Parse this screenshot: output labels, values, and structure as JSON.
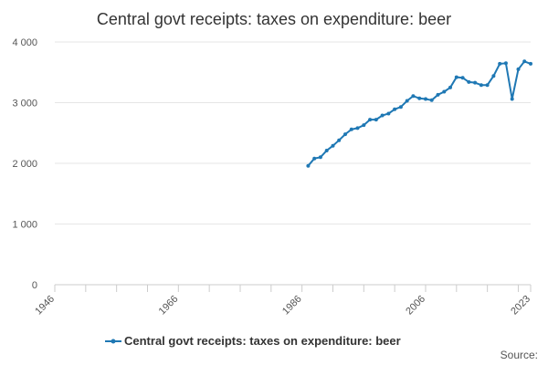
{
  "chart_data": {
    "type": "line",
    "title": "Central govt receipts: taxes on expenditure: beer",
    "xlabel": "",
    "ylabel": "",
    "xlim": [
      1946,
      2023
    ],
    "ylim": [
      0,
      4000
    ],
    "x_ticks": [
      "1946",
      "1966",
      "1986",
      "2006",
      "2023"
    ],
    "y_ticks": [
      "0",
      "1 000",
      "2 000",
      "3 000",
      "4 000"
    ],
    "grid": true,
    "legend_position": "bottom",
    "series": [
      {
        "name": "Central govt receipts: taxes on expenditure: beer",
        "color": "#1f78b4",
        "x": [
          1987,
          1988,
          1989,
          1990,
          1991,
          1992,
          1993,
          1994,
          1995,
          1996,
          1997,
          1998,
          1999,
          2000,
          2001,
          2002,
          2003,
          2004,
          2005,
          2006,
          2007,
          2008,
          2009,
          2010,
          2011,
          2012,
          2013,
          2014,
          2015,
          2016,
          2017,
          2018,
          2019,
          2020,
          2021,
          2022,
          2023
        ],
        "values": [
          1960,
          2080,
          2100,
          2210,
          2290,
          2380,
          2480,
          2560,
          2580,
          2630,
          2720,
          2720,
          2790,
          2820,
          2890,
          2930,
          3030,
          3110,
          3070,
          3060,
          3040,
          3130,
          3180,
          3250,
          3420,
          3410,
          3340,
          3330,
          3290,
          3290,
          3440,
          3640,
          3650,
          3060,
          3550,
          3680,
          3640
        ]
      }
    ]
  },
  "source_label": "Source:"
}
